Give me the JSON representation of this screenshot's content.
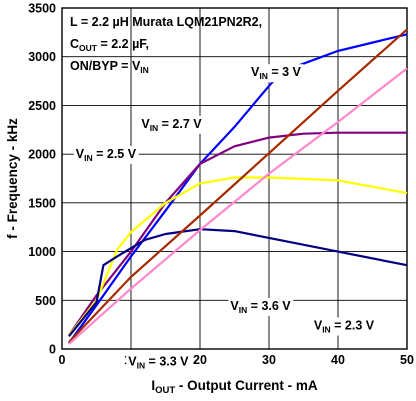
{
  "chart_data": {
    "type": "line",
    "xlabel_main": "I",
    "xlabel_sub": "OUT",
    "xlabel_rest": " - Output Current - mA",
    "ylabel": "f - Frequency - kHz",
    "xlim": [
      0,
      50
    ],
    "ylim": [
      0,
      3500
    ],
    "x_ticks": [
      0,
      10,
      20,
      30,
      40,
      50
    ],
    "y_ticks": [
      0,
      500,
      1000,
      1500,
      2000,
      2500,
      3000,
      3500
    ],
    "grid": true,
    "conditions": {
      "line1": "L = 2.2 µH Murata LQM21PN2R2,",
      "line2_main": "C",
      "line2_sub": "OUT",
      "line2_rest": " = 2.2 µF,",
      "line3_main": "ON/BYP = V",
      "line3_sub": "IN"
    },
    "series": [
      {
        "name": "VIN = 3 V",
        "color": "#0000ff",
        "points": [
          [
            1,
            60
          ],
          [
            5,
            450
          ],
          [
            10,
            950
          ],
          [
            15,
            1420
          ],
          [
            20,
            1900
          ],
          [
            25,
            2280
          ],
          [
            30,
            2700
          ],
          [
            32,
            2850
          ],
          [
            40,
            3060
          ],
          [
            50,
            3230
          ]
        ]
      },
      {
        "name": "VIN = 2.7 V",
        "color": "#800080",
        "points": [
          [
            1,
            140
          ],
          [
            5,
            550
          ],
          [
            10,
            1000
          ],
          [
            15,
            1500
          ],
          [
            20,
            1900
          ],
          [
            25,
            2080
          ],
          [
            30,
            2170
          ],
          [
            35,
            2210
          ],
          [
            40,
            2220
          ],
          [
            50,
            2220
          ]
        ]
      },
      {
        "name": "VIN = 2.5 V",
        "color": "#ffff00",
        "points": [
          [
            1,
            140
          ],
          [
            5,
            500
          ],
          [
            8,
            1020
          ],
          [
            10,
            1200
          ],
          [
            15,
            1500
          ],
          [
            20,
            1700
          ],
          [
            25,
            1760
          ],
          [
            30,
            1760
          ],
          [
            40,
            1730
          ],
          [
            50,
            1600
          ]
        ]
      },
      {
        "name": "VIN = 2.3 V",
        "color": "#000080",
        "points": [
          [
            1,
            130
          ],
          [
            5,
            480
          ],
          [
            6,
            860
          ],
          [
            8,
            950
          ],
          [
            12,
            1120
          ],
          [
            15,
            1180
          ],
          [
            20,
            1230
          ],
          [
            25,
            1210
          ],
          [
            30,
            1140
          ],
          [
            40,
            1000
          ],
          [
            50,
            860
          ]
        ]
      },
      {
        "name": "VIN = 3.6 V",
        "color": "#a52a00",
        "points": [
          [
            1,
            70
          ],
          [
            10,
            740
          ],
          [
            20,
            1370
          ],
          [
            30,
            2010
          ],
          [
            40,
            2650
          ],
          [
            50,
            3280
          ]
        ]
      },
      {
        "name": "VIN = 3.3 V",
        "color": "#ff88cc",
        "points": [
          [
            1,
            50
          ],
          [
            10,
            620
          ],
          [
            20,
            1220
          ],
          [
            30,
            1800
          ],
          [
            40,
            2330
          ],
          [
            50,
            2880
          ]
        ]
      }
    ],
    "annotations": [
      {
        "main": "V",
        "sub": "IN",
        "rest": " = 3 V",
        "x": 27.4,
        "y": 2800
      },
      {
        "main": "V",
        "sub": "IN",
        "rest": " = 2.7 V",
        "x": 11.5,
        "y": 2270
      },
      {
        "main": "V",
        "sub": "IN",
        "rest": " = 2.5 V",
        "x": 2.0,
        "y": 1960
      },
      {
        "main": "V",
        "sub": "IN",
        "rest": " = 3.6 V",
        "x": 24.4,
        "y": 400
      },
      {
        "main": "V",
        "sub": "IN",
        "rest": " = 3.3 V",
        "x": 9.6,
        "y": -170
      },
      {
        "main": "V",
        "sub": "IN",
        "rest": " = 2.3 V",
        "x": 36.5,
        "y": 200
      }
    ]
  }
}
